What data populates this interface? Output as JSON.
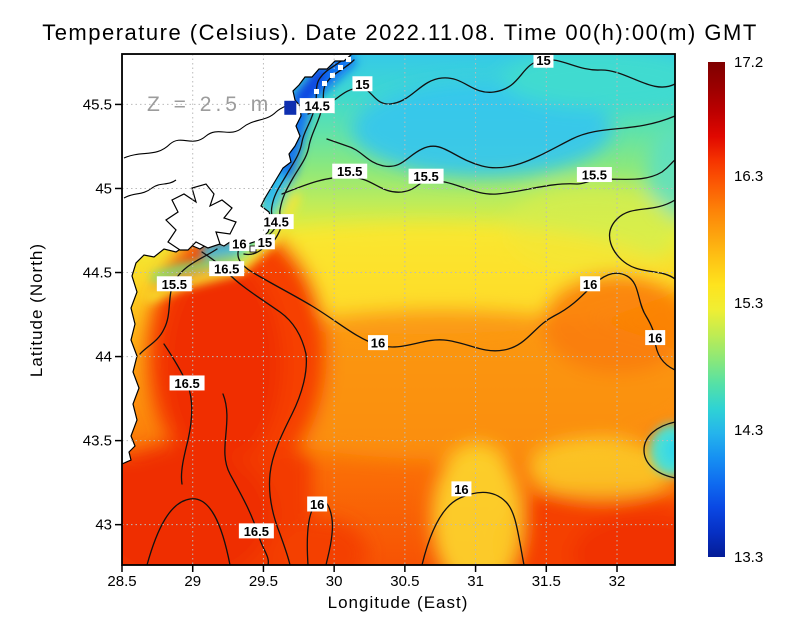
{
  "title": "Temperature (Celsius). Date 2022.11.08. Time 00(h):00(m) GMT",
  "axes": {
    "x": {
      "label": "Longitude (East)",
      "ticks": [
        "28.5",
        "29",
        "29.5",
        "30",
        "30.5",
        "31",
        "31.5",
        "32"
      ],
      "tick_values": [
        28.5,
        29,
        29.5,
        30,
        30.5,
        31,
        31.5,
        32
      ],
      "range": [
        28.5,
        32.41
      ]
    },
    "y": {
      "label": "Latitude (North)",
      "ticks": [
        "45.5",
        "45",
        "44.5",
        "44",
        "43.5",
        "43"
      ],
      "tick_values": [
        45.5,
        45,
        44.5,
        44,
        43.5,
        43
      ],
      "range": [
        42.76,
        45.8
      ]
    }
  },
  "map": {
    "annotation": "Z = 2.5 m",
    "marker": {
      "lon": 29.69,
      "lat": 45.48,
      "color": "#0e2fb0"
    },
    "contour_levels": [
      14.5,
      15,
      15.5,
      16,
      16.5
    ],
    "contour_labels": [
      {
        "text": "15",
        "lon": 30.2,
        "lat": 45.62
      },
      {
        "text": "14.5",
        "lon": 29.88,
        "lat": 45.49
      },
      {
        "text": "15",
        "lon": 31.48,
        "lat": 45.76
      },
      {
        "text": "14.5",
        "lon": 29.59,
        "lat": 44.8
      },
      {
        "text": "16",
        "lon": 29.33,
        "lat": 44.67
      },
      {
        "text": "15",
        "lon": 29.51,
        "lat": 44.68
      },
      {
        "text": "16.5",
        "lon": 29.24,
        "lat": 44.52
      },
      {
        "text": "15.5",
        "lon": 28.87,
        "lat": 44.43
      },
      {
        "text": "15.5",
        "lon": 30.11,
        "lat": 45.1
      },
      {
        "text": "15.5",
        "lon": 30.65,
        "lat": 45.07
      },
      {
        "text": "15.5",
        "lon": 31.84,
        "lat": 45.08
      },
      {
        "text": "16",
        "lon": 30.31,
        "lat": 44.08
      },
      {
        "text": "16",
        "lon": 31.81,
        "lat": 44.43
      },
      {
        "text": "16",
        "lon": 32.27,
        "lat": 44.11
      },
      {
        "text": "16.5",
        "lon": 28.96,
        "lat": 43.84
      },
      {
        "text": "16.5",
        "lon": 29.45,
        "lat": 42.96
      },
      {
        "text": "16",
        "lon": 29.88,
        "lat": 43.12
      },
      {
        "text": "16",
        "lon": 30.9,
        "lat": 43.21
      }
    ]
  },
  "colorbar": {
    "min": 13.3,
    "max": 17.2,
    "tick_labels": [
      "17.2",
      "16.3",
      "15.3",
      "14.3",
      "13.3"
    ],
    "tick_values": [
      17.2,
      16.3,
      15.3,
      14.3,
      13.3
    ],
    "colors_top_to_bottom": [
      "#7f0000",
      "#9a0000",
      "#bc0000",
      "#e00800",
      "#f63400",
      "#fc5c04",
      "#fd8308",
      "#fda40e",
      "#fec515",
      "#fee31e",
      "#f0ee33",
      "#c0ec52",
      "#8ce878",
      "#55e1a6",
      "#2fd3d4",
      "#25b4ec",
      "#1690f2",
      "#0f6cf0",
      "#0a48e4",
      "#0630c4",
      "#041c96"
    ]
  },
  "chart_data": {
    "type": "heatmap",
    "title": "Temperature (Celsius). Date 2022.11.08. Time 00(h):00(m) GMT",
    "xlabel": "Longitude (East)",
    "ylabel": "Latitude (North)",
    "xlim": [
      28.5,
      32.41
    ],
    "ylim": [
      42.76,
      45.8
    ],
    "grid": "dotted gray every 0.5 degree",
    "legend_position": "right colorbar",
    "annotation": "Z = 2.5 m",
    "colorbar_range": [
      13.3,
      17.2
    ],
    "colorbar_ticks": [
      17.2,
      16.3,
      15.3,
      14.3,
      13.3
    ],
    "contour_levels": [
      14.5,
      15,
      15.5,
      16,
      16.5
    ],
    "sample_lons": [
      28.75,
      29.25,
      29.75,
      30.25,
      30.75,
      31.25,
      31.75,
      32.25
    ],
    "sample_lats": [
      45.6,
      45.1,
      44.65,
      44.25,
      43.75,
      43.25,
      42.85
    ],
    "sample_values_degC": [
      [
        null,
        null,
        14.7,
        14.9,
        15.0,
        15.1,
        15.0,
        15.1
      ],
      [
        null,
        14.4,
        15.0,
        15.3,
        15.4,
        15.3,
        15.3,
        15.4
      ],
      [
        null,
        15.9,
        15.6,
        15.6,
        15.5,
        15.5,
        15.6,
        15.5
      ],
      [
        16.4,
        16.6,
        16.2,
        16.0,
        15.9,
        15.9,
        16.1,
        16.2
      ],
      [
        16.6,
        16.7,
        16.4,
        16.1,
        16.0,
        16.0,
        16.1,
        15.9
      ],
      [
        16.6,
        16.6,
        16.5,
        16.2,
        16.3,
        16.1,
        16.4,
        16.5
      ],
      [
        16.7,
        16.6,
        16.4,
        16.3,
        16.2,
        16.4,
        16.6,
        16.7
      ]
    ],
    "notes": "Sea-surface temperature field; white = land (NW Black Sea coast, Danube delta). Cold blue band hugs the coast; warm red pool offshore to the south-west."
  }
}
